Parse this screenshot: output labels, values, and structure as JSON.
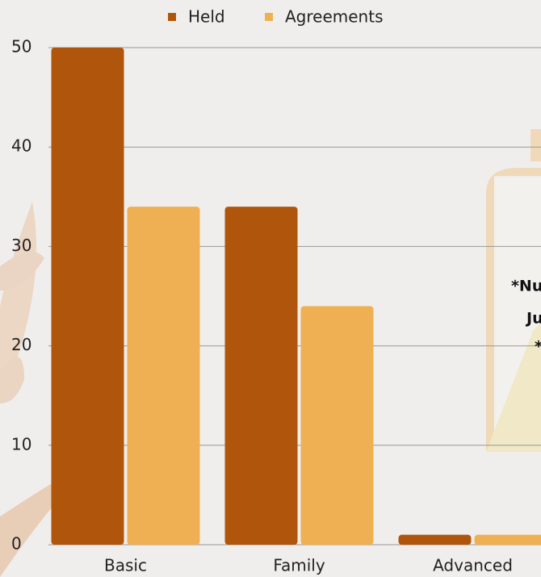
{
  "chart_data": {
    "type": "bar",
    "categories": [
      "Basic",
      "Family",
      "Advanced"
    ],
    "series": [
      {
        "name": "Held",
        "color": "#b0560c",
        "values": [
          50,
          34,
          1
        ]
      },
      {
        "name": "Agreements",
        "color": "#efb053",
        "values": [
          34,
          24,
          1
        ]
      }
    ],
    "ylim": [
      0,
      50
    ],
    "yticks": [
      0,
      10,
      20,
      30,
      40,
      50
    ],
    "grid": true,
    "legend": "top",
    "annotations": [
      "*Nu",
      "Ju",
      "*"
    ]
  }
}
